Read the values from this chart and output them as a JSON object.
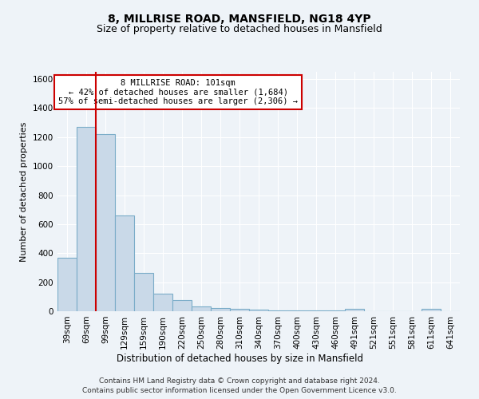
{
  "title": "8, MILLRISE ROAD, MANSFIELD, NG18 4YP",
  "subtitle": "Size of property relative to detached houses in Mansfield",
  "xlabel": "Distribution of detached houses by size in Mansfield",
  "ylabel": "Number of detached properties",
  "bin_labels": [
    "39sqm",
    "69sqm",
    "99sqm",
    "129sqm",
    "159sqm",
    "190sqm",
    "220sqm",
    "250sqm",
    "280sqm",
    "310sqm",
    "340sqm",
    "370sqm",
    "400sqm",
    "430sqm",
    "460sqm",
    "491sqm",
    "521sqm",
    "551sqm",
    "581sqm",
    "611sqm",
    "641sqm"
  ],
  "bar_heights": [
    370,
    1270,
    1220,
    660,
    265,
    120,
    75,
    35,
    20,
    15,
    10,
    8,
    5,
    5,
    5,
    15,
    0,
    0,
    0,
    15,
    0
  ],
  "bar_color": "#c9d9e8",
  "bar_edge_color": "#7aacc8",
  "red_line_x": 1.5,
  "red_line_color": "#cc0000",
  "ylim": [
    0,
    1650
  ],
  "yticks": [
    0,
    200,
    400,
    600,
    800,
    1000,
    1200,
    1400,
    1600
  ],
  "annotation_text": "8 MILLRISE ROAD: 101sqm\n← 42% of detached houses are smaller (1,684)\n57% of semi-detached houses are larger (2,306) →",
  "annotation_box_color": "#ffffff",
  "annotation_box_edge": "#cc0000",
  "footer_line1": "Contains HM Land Registry data © Crown copyright and database right 2024.",
  "footer_line2": "Contains public sector information licensed under the Open Government Licence v3.0.",
  "bg_color": "#eef3f8",
  "grid_color": "#ffffff",
  "title_fontsize": 10,
  "subtitle_fontsize": 9,
  "ylabel_fontsize": 8,
  "xlabel_fontsize": 8.5,
  "tick_fontsize": 7.5,
  "footer_fontsize": 6.5
}
